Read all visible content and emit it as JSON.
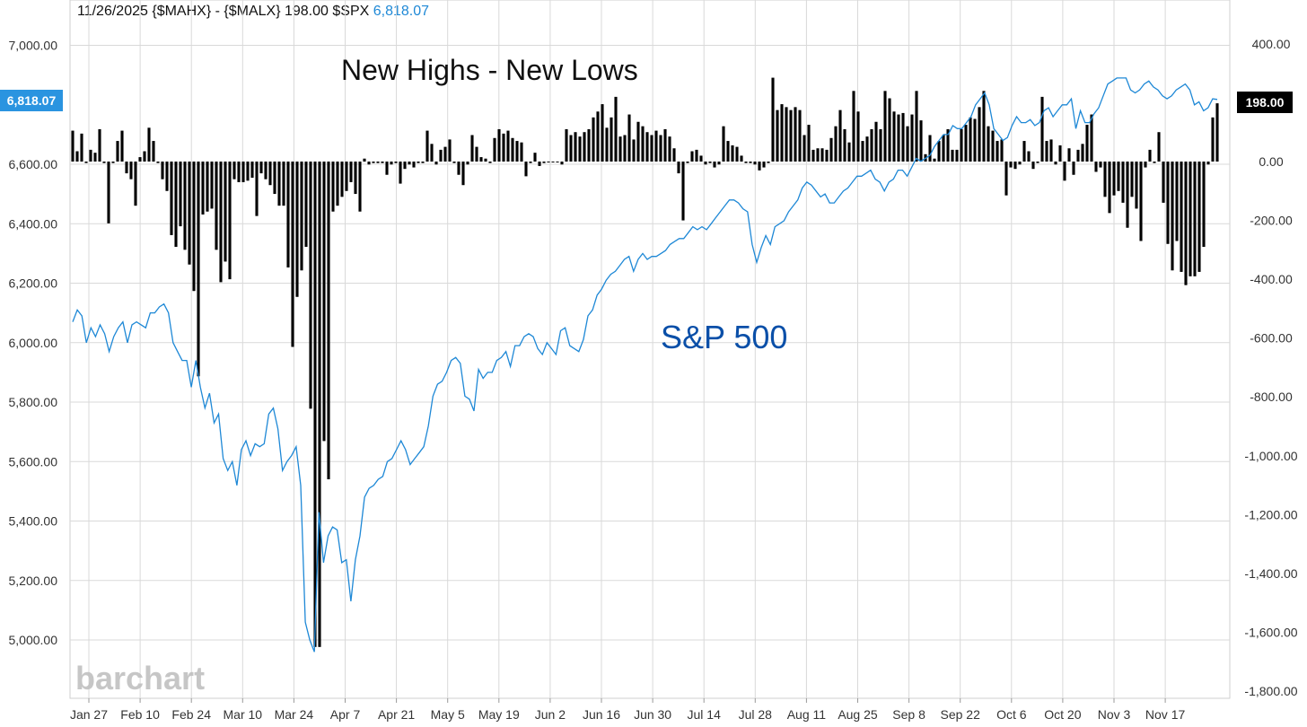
{
  "header": {
    "date": "11/26/2025",
    "formula": "{$MAHX} - {$MALX}",
    "formula_value": "198.00",
    "symbol": "$SPX",
    "symbol_value": "6,818.07"
  },
  "annotations": {
    "bars_title": "New Highs - New Lows",
    "line_title": "S&P 500"
  },
  "watermark": "barchart",
  "colors": {
    "bars": "#000000",
    "line": "#1e88d6",
    "annotation_line_label": "#0a4fa8",
    "grid": "#d9d9d9",
    "axis_text": "#333333"
  },
  "chart_data": {
    "type": "bar",
    "grid": true,
    "x_tick_labels": [
      "Jan 27",
      "Feb 10",
      "Feb 24",
      "Mar 10",
      "Mar 24",
      "Apr 7",
      "Apr 21",
      "May 5",
      "May 19",
      "Jun 2",
      "Jun 16",
      "Jun 30",
      "Jul 14",
      "Jul 28",
      "Aug 11",
      "Aug 25",
      "Sep 8",
      "Sep 22",
      "Oct 6",
      "Oct 20",
      "Nov 3",
      "Nov 17"
    ],
    "left_axis": {
      "ylim": [
        4800,
        7200
      ],
      "ticks": [
        5000,
        5200,
        5400,
        5600,
        5800,
        6000,
        6200,
        6400,
        6600,
        7000
      ],
      "tick_labels": [
        "5,000.00",
        "5,200.00",
        "5,400.00",
        "5,600.00",
        "5,800.00",
        "6,000.00",
        "6,200.00",
        "6,400.00",
        "6,600.00",
        "7,000.00"
      ],
      "current_label": "6,818.07"
    },
    "right_axis": {
      "ylim": [
        -1800,
        400
      ],
      "ticks": [
        400,
        0,
        -200,
        -400,
        -600,
        -800,
        -1000,
        -1200,
        -1400,
        -1600,
        -1800
      ],
      "tick_labels": [
        "400.00",
        "0.00",
        "-200.00",
        "-400.00",
        "-600.00",
        "-800.00",
        "-1,000.00",
        "-1,200.00",
        "-1,400.00",
        "-1,600.00",
        "-1,800.00"
      ],
      "current_label": "198.00"
    },
    "series": [
      {
        "name": "{$MAHX} - {$MALX}",
        "type": "bar",
        "axis": "right",
        "values": [
          105,
          35,
          95,
          -5,
          40,
          30,
          110,
          -5,
          -210,
          -5,
          70,
          105,
          -40,
          -60,
          -150,
          15,
          35,
          115,
          70,
          -5,
          -60,
          -100,
          -250,
          -290,
          -220,
          -300,
          -350,
          -440,
          -730,
          -180,
          -170,
          -160,
          -300,
          -410,
          -340,
          -400,
          -60,
          -70,
          -70,
          -65,
          -55,
          -185,
          -40,
          -60,
          -80,
          -110,
          -150,
          -150,
          -360,
          -630,
          -460,
          -370,
          -290,
          -840,
          -1650,
          -1650,
          -950,
          -1080,
          -170,
          -150,
          -120,
          -100,
          -70,
          -110,
          -170,
          10,
          -10,
          -5,
          -5,
          -5,
          -45,
          -10,
          -5,
          -75,
          -25,
          -10,
          -20,
          -5,
          -5,
          105,
          60,
          -10,
          40,
          50,
          75,
          -5,
          -45,
          -80,
          -10,
          90,
          50,
          15,
          10,
          -5,
          80,
          110,
          95,
          105,
          80,
          70,
          65,
          -50,
          -5,
          30,
          -15,
          -5,
          0,
          0,
          0,
          -10,
          110,
          90,
          100,
          85,
          100,
          110,
          150,
          170,
          195,
          115,
          150,
          220,
          85,
          90,
          160,
          75,
          135,
          120,
          100,
          90,
          105,
          90,
          110,
          85,
          45,
          -40,
          -200,
          -5,
          35,
          40,
          20,
          -10,
          -5,
          -20,
          -10,
          120,
          70,
          55,
          50,
          20,
          -5,
          -5,
          -10,
          -30,
          -20,
          -5,
          285,
          175,
          195,
          185,
          175,
          185,
          175,
          90,
          125,
          40,
          45,
          45,
          40,
          80,
          120,
          175,
          110,
          65,
          240,
          170,
          70,
          85,
          110,
          135,
          110,
          240,
          215,
          170,
          160,
          165,
          120,
          160,
          240,
          140,
          25,
          90,
          10,
          70,
          90,
          110,
          40,
          40,
          110,
          125,
          150,
          145,
          185,
          240,
          120,
          105,
          70,
          75,
          -115,
          -20,
          -25,
          -10,
          70,
          35,
          -25,
          -5,
          220,
          70,
          75,
          -10,
          55,
          -65,
          45,
          -45,
          40,
          60,
          125,
          160,
          -35,
          -20,
          -120,
          -175,
          -115,
          -100,
          -140,
          -225,
          -120,
          -160,
          -270,
          -20,
          40,
          -5,
          100,
          -140,
          -280,
          -370,
          -270,
          -375,
          -420,
          -390,
          -390,
          -375,
          -290,
          -10,
          150,
          198
        ]
      },
      {
        "name": "$SPX",
        "type": "line",
        "axis": "left",
        "values": [
          6070,
          6110,
          6090,
          6000,
          6050,
          6020,
          6060,
          6030,
          5970,
          6020,
          6050,
          6070,
          6000,
          6060,
          6070,
          6060,
          6050,
          6100,
          6100,
          6120,
          6130,
          6100,
          6000,
          5970,
          5940,
          5940,
          5850,
          5940,
          5850,
          5780,
          5830,
          5730,
          5760,
          5610,
          5570,
          5600,
          5520,
          5640,
          5670,
          5620,
          5660,
          5650,
          5660,
          5760,
          5780,
          5710,
          5570,
          5600,
          5620,
          5650,
          5520,
          5060,
          5000,
          4960,
          5430,
          5260,
          5350,
          5380,
          5370,
          5260,
          5270,
          5130,
          5270,
          5350,
          5480,
          5510,
          5520,
          5540,
          5550,
          5600,
          5610,
          5640,
          5670,
          5640,
          5590,
          5610,
          5630,
          5650,
          5720,
          5820,
          5860,
          5870,
          5900,
          5940,
          5950,
          5930,
          5820,
          5810,
          5770,
          5910,
          5880,
          5900,
          5900,
          5940,
          5950,
          5970,
          5920,
          5990,
          5990,
          6020,
          6030,
          6020,
          5980,
          5960,
          6000,
          5980,
          5960,
          6040,
          6050,
          5990,
          5980,
          5970,
          6010,
          6090,
          6110,
          6160,
          6180,
          6210,
          6230,
          6240,
          6260,
          6280,
          6290,
          6240,
          6280,
          6300,
          6280,
          6290,
          6290,
          6300,
          6310,
          6330,
          6340,
          6350,
          6350,
          6370,
          6390,
          6380,
          6390,
          6380,
          6400,
          6420,
          6440,
          6460,
          6480,
          6480,
          6470,
          6450,
          6440,
          6330,
          6270,
          6320,
          6360,
          6330,
          6390,
          6400,
          6410,
          6440,
          6460,
          6480,
          6520,
          6540,
          6530,
          6510,
          6490,
          6500,
          6470,
          6470,
          6490,
          6510,
          6520,
          6540,
          6560,
          6560,
          6570,
          6580,
          6550,
          6540,
          6510,
          6540,
          6550,
          6580,
          6580,
          6560,
          6590,
          6620,
          6610,
          6620,
          6630,
          6660,
          6680,
          6700,
          6700,
          6730,
          6720,
          6720,
          6740,
          6760,
          6800,
          6820,
          6840,
          6800,
          6720,
          6700,
          6680,
          6690,
          6730,
          6760,
          6740,
          6740,
          6750,
          6730,
          6740,
          6780,
          6790,
          6760,
          6780,
          6800,
          6800,
          6820,
          6720,
          6780,
          6740,
          6740,
          6770,
          6790,
          6830,
          6870,
          6880,
          6890,
          6890,
          6890,
          6850,
          6840,
          6850,
          6870,
          6880,
          6860,
          6850,
          6830,
          6820,
          6830,
          6850,
          6860,
          6870,
          6850,
          6800,
          6810,
          6780,
          6790,
          6820,
          6818.07
        ]
      }
    ]
  }
}
